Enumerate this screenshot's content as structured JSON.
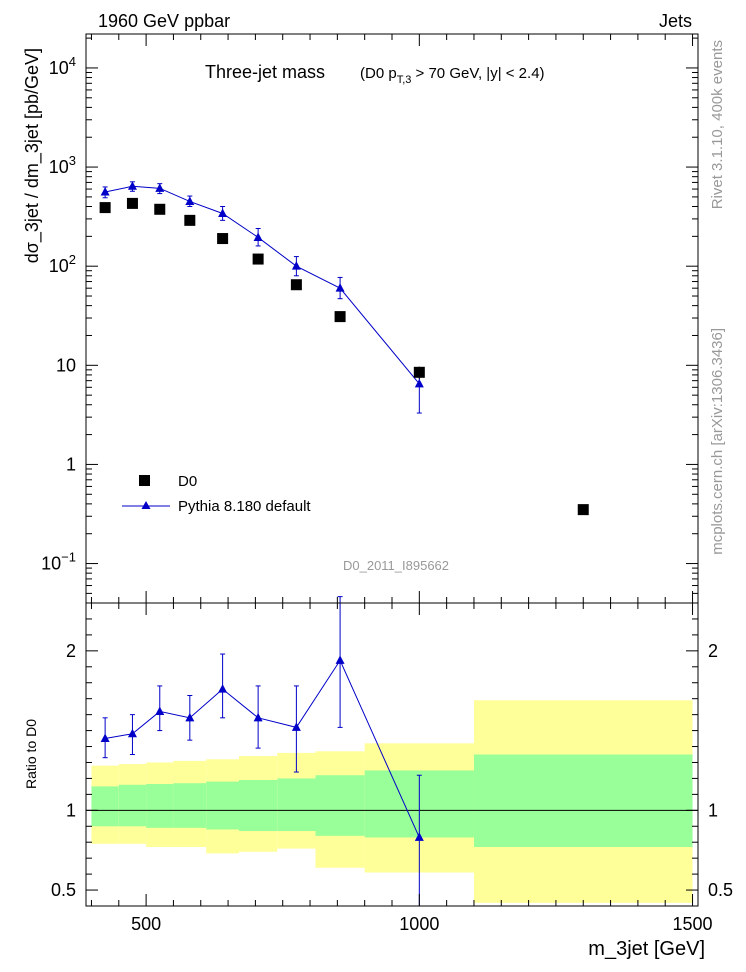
{
  "header": {
    "left": "1960 GeV ppbar",
    "right": "Jets"
  },
  "side_labels": {
    "rivet": "Rivet 3.1.10,  400k events",
    "mcplots": "mcplots.cern.ch [arXiv:1306.3436]"
  },
  "chart_data": [
    {
      "type": "scatter",
      "title": "Three-jet mass",
      "subtitle": "(D0 p_T,3 > 70 GeV, |y| < 2.4)",
      "subtitle_parts": {
        "pre": "(D0 p",
        "sub": "T,3",
        "post": " > 70 GeV, |y| < 2.4)"
      },
      "ylabel": "dσ_3jet / dm_3jet [pb/GeV]",
      "xlabel": "",
      "watermark": "D0_2011_I895662",
      "yscale": "log",
      "xlim": [
        390,
        1510
      ],
      "ylim": [
        0.04,
        22000
      ],
      "x_ticks": [
        500,
        1000,
        1500
      ],
      "y_ticks": [
        {
          "value": 0.1,
          "mant": "10",
          "exp": "−1"
        },
        {
          "value": 1,
          "mant": "1",
          "exp": ""
        },
        {
          "value": 10,
          "mant": "10",
          "exp": ""
        },
        {
          "value": 100,
          "mant": "10",
          "exp": "2"
        },
        {
          "value": 1000,
          "mant": "10",
          "exp": "3"
        },
        {
          "value": 10000,
          "mant": "10",
          "exp": "4"
        }
      ],
      "legend": {
        "position": "lower-left"
      },
      "series": [
        {
          "name": "D0",
          "marker": "square",
          "color": "#000000",
          "x": [
            425,
            475,
            525,
            580,
            640,
            705,
            775,
            855,
            1000,
            1300
          ],
          "y": [
            390,
            430,
            375,
            290,
            190,
            118,
            65,
            31,
            8.5,
            0.35
          ],
          "yerr": [
            0,
            0,
            0,
            0,
            0,
            0,
            0,
            0,
            1.2,
            0
          ]
        },
        {
          "name": "Pythia 8.180 default",
          "marker": "triangle",
          "color": "#0000c8",
          "x": [
            425,
            475,
            525,
            580,
            640,
            705,
            775,
            855,
            1000
          ],
          "y": [
            560,
            640,
            610,
            450,
            340,
            195,
            100,
            60,
            6.5
          ],
          "ylo": [
            490,
            570,
            540,
            400,
            290,
            160,
            80,
            47,
            3.3
          ],
          "yhi": [
            630,
            710,
            680,
            510,
            400,
            240,
            125,
            77,
            9.5
          ]
        }
      ]
    },
    {
      "type": "scatter",
      "ylabel": "Ratio to D0",
      "xlabel": "m_3jet [GeV]",
      "xlim": [
        390,
        1510
      ],
      "ylim": [
        0.4,
        2.3
      ],
      "x_ticks": [
        500,
        1000,
        1500
      ],
      "y_ticks": [
        0.5,
        1,
        2
      ],
      "bins": [
        {
          "x0": 400,
          "x1": 450,
          "g_lo": 0.9,
          "g_hi": 1.15,
          "y_lo": 0.79,
          "y_hi": 1.28
        },
        {
          "x0": 450,
          "x1": 500,
          "g_lo": 0.9,
          "g_hi": 1.16,
          "y_lo": 0.79,
          "y_hi": 1.29
        },
        {
          "x0": 500,
          "x1": 550,
          "g_lo": 0.89,
          "g_hi": 1.165,
          "y_lo": 0.77,
          "y_hi": 1.3
        },
        {
          "x0": 550,
          "x1": 610,
          "g_lo": 0.89,
          "g_hi": 1.17,
          "y_lo": 0.77,
          "y_hi": 1.31
        },
        {
          "x0": 610,
          "x1": 670,
          "g_lo": 0.88,
          "g_hi": 1.18,
          "y_lo": 0.73,
          "y_hi": 1.32
        },
        {
          "x0": 670,
          "x1": 740,
          "g_lo": 0.87,
          "g_hi": 1.19,
          "y_lo": 0.74,
          "y_hi": 1.34
        },
        {
          "x0": 740,
          "x1": 810,
          "g_lo": 0.87,
          "g_hi": 1.2,
          "y_lo": 0.76,
          "y_hi": 1.36
        },
        {
          "x0": 810,
          "x1": 900,
          "g_lo": 0.84,
          "g_hi": 1.22,
          "y_lo": 0.64,
          "y_hi": 1.37
        },
        {
          "x0": 900,
          "x1": 1100,
          "g_lo": 0.83,
          "g_hi": 1.25,
          "y_lo": 0.61,
          "y_hi": 1.42
        },
        {
          "x0": 1100,
          "x1": 1500,
          "g_lo": 0.77,
          "g_hi": 1.35,
          "y_lo": 0.42,
          "y_hi": 1.69
        }
      ],
      "band_colors": {
        "inner": "#99ff99",
        "outer": "#ffff99"
      },
      "series": [
        {
          "name": "Pythia 8.180 default",
          "marker": "triangle",
          "color": "#0000c8",
          "x": [
            425,
            475,
            525,
            580,
            640,
            705,
            775,
            855,
            1000
          ],
          "y": [
            1.45,
            1.48,
            1.62,
            1.58,
            1.76,
            1.58,
            1.52,
            1.94,
            0.83
          ],
          "ylo": [
            1.33,
            1.35,
            1.5,
            1.44,
            1.58,
            1.39,
            1.24,
            1.52,
            0.4
          ],
          "yhi": [
            1.58,
            1.6,
            1.78,
            1.72,
            1.98,
            1.78,
            1.78,
            2.34,
            1.22
          ]
        }
      ]
    }
  ]
}
